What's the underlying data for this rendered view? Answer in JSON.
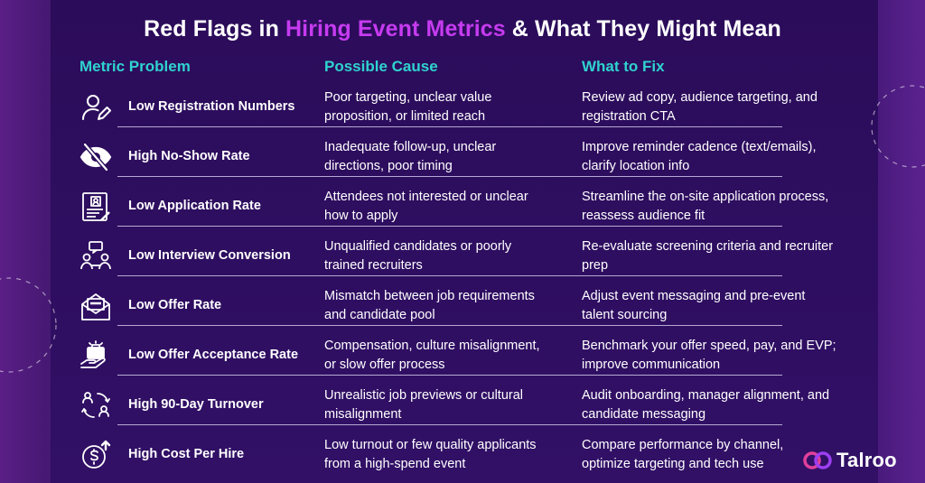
{
  "title": {
    "prefix": "Red Flags in ",
    "highlight": "Hiring Event Metrics",
    "suffix": " & What They Might Mean"
  },
  "headers": {
    "metric": "Metric Problem",
    "cause": "Possible Cause",
    "fix": "What to Fix"
  },
  "rows": [
    {
      "icon": "user-edit-icon",
      "metric": "Low Registration Numbers",
      "cause_1": "Poor targeting, unclear value",
      "cause_2": "proposition, or limited reach",
      "fix_1": "Review ad copy, audience targeting, and",
      "fix_2": "registration CTA"
    },
    {
      "icon": "eye-slash-icon",
      "metric": "High No-Show Rate",
      "cause_1": "Inadequate follow-up, unclear",
      "cause_2": "directions, poor timing",
      "fix_1": "Improve reminder cadence (text/emails),",
      "fix_2": "clarify location info"
    },
    {
      "icon": "application-form-icon",
      "metric": "Low Application Rate",
      "cause_1": "Attendees not interested or unclear",
      "cause_2": "how to apply",
      "fix_1": "Streamline the on-site application process,",
      "fix_2": "reassess audience fit"
    },
    {
      "icon": "interview-icon",
      "metric": "Low Interview Conversion",
      "cause_1": "Unqualified candidates or poorly",
      "cause_2": "trained recruiters",
      "fix_1": "Re-evaluate screening criteria and recruiter",
      "fix_2": "prep"
    },
    {
      "icon": "offer-envelope-icon",
      "metric": "Low Offer Rate",
      "cause_1": "Mismatch between job requirements",
      "cause_2": "and candidate pool",
      "fix_1": "Adjust event messaging and pre-event",
      "fix_2": "talent sourcing"
    },
    {
      "icon": "briefcase-hand-icon",
      "metric": "Low Offer Acceptance Rate",
      "cause_1": "Compensation, culture misalignment,",
      "cause_2": "or slow offer process",
      "fix_1": "Benchmark your offer speed, pay, and EVP;",
      "fix_2": "improve communication"
    },
    {
      "icon": "turnover-people-icon",
      "metric": "High 90-Day Turnover",
      "cause_1": "Unrealistic job previews or cultural",
      "cause_2": "misalignment",
      "fix_1": "Audit onboarding, manager alignment, and",
      "fix_2": "candidate messaging"
    },
    {
      "icon": "dollar-up-icon",
      "metric": "High Cost Per Hire",
      "cause_1": "Low turnout or few quality applicants",
      "cause_2": "from a high-spend event",
      "fix_1": "Compare performance by channel,",
      "fix_2": "optimize targeting and tech use"
    }
  ],
  "logo": {
    "text": "Talroo"
  },
  "colors": {
    "background": "#2b0c5a",
    "accent_teal": "#2fd3cf",
    "accent_magenta": "#c63bf0",
    "text": "#ffffff"
  }
}
